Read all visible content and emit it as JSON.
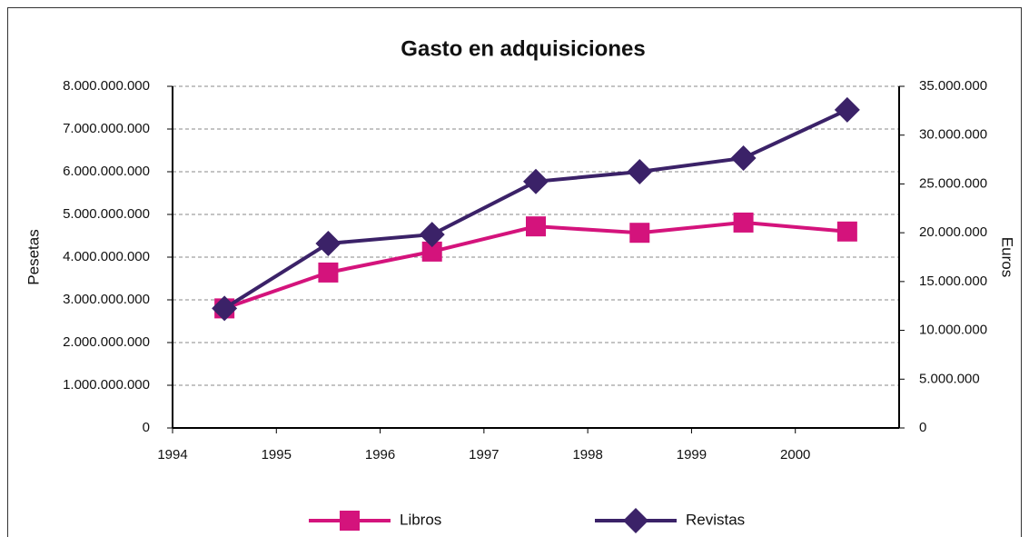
{
  "chart_data": {
    "type": "line",
    "title": "Gasto en adquisiciones",
    "y_label": "Pesetas",
    "y2_label": "Euros",
    "x": [
      1994.5,
      1995.5,
      1996.5,
      1997.5,
      1998.5,
      1999.5,
      2000.5
    ],
    "xlim": [
      1994,
      2001
    ],
    "xticks": [
      1994,
      1995,
      1996,
      1997,
      1998,
      1999,
      2000
    ],
    "ylim": [
      0,
      8000000000
    ],
    "yticks": [
      0,
      {
        "value": 1000000000,
        "label": "1.000.000.000"
      },
      {
        "value": 2000000000,
        "label": "2.000.000.000"
      },
      {
        "value": 3000000000,
        "label": "3.000.000.000"
      },
      {
        "value": 4000000000,
        "label": "4.000.000.000"
      },
      {
        "value": 5000000000,
        "label": "5.000.000.000"
      },
      {
        "value": 6000000000,
        "label": "6.000.000.000"
      },
      {
        "value": 7000000000,
        "label": "7.000.000.000"
      },
      {
        "value": 8000000000,
        "label": "8.000.000.000"
      }
    ],
    "y2lim": [
      0,
      35000000
    ],
    "y2ticks": [
      0,
      {
        "value": 5000000,
        "label": "5.000.000"
      },
      {
        "value": 10000000,
        "label": "10.000.000"
      },
      {
        "value": 15000000,
        "label": "15.000.000"
      },
      {
        "value": 20000000,
        "label": "20.000.000"
      },
      {
        "value": 25000000,
        "label": "25.000.000"
      },
      {
        "value": 30000000,
        "label": "30.000.000"
      },
      {
        "value": 35000000,
        "label": "35.000.000"
      }
    ],
    "grid": true,
    "legend": "bottom",
    "series": [
      {
        "name": "Libros",
        "color": "#d4137c",
        "marker": "square",
        "values": [
          2800000000,
          3640000000,
          4130000000,
          4720000000,
          4570000000,
          4810000000,
          4600000000
        ]
      },
      {
        "name": "Revistas",
        "color": "#3b2268",
        "marker": "diamond",
        "values": [
          2800000000,
          4320000000,
          4530000000,
          5770000000,
          6000000000,
          6320000000,
          7450000000
        ]
      }
    ]
  }
}
